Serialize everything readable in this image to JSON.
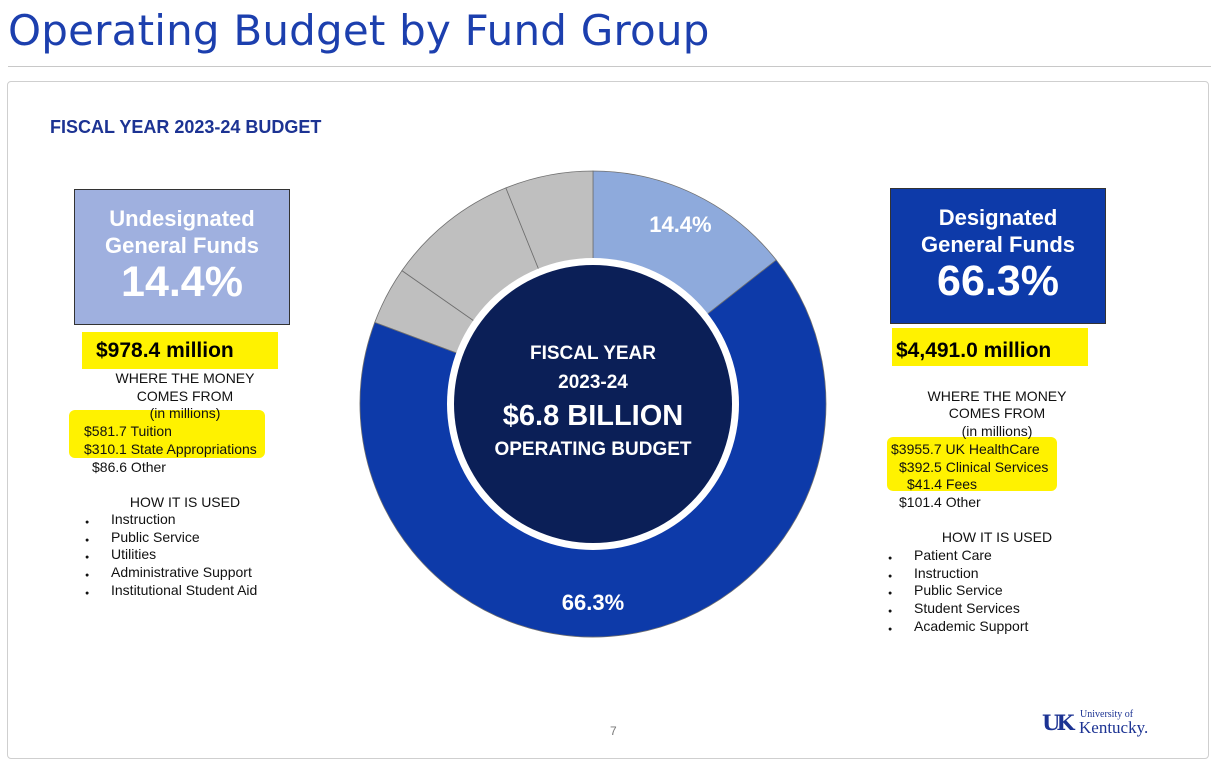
{
  "page_header": "Operating Budget by Fund Group",
  "slide": {
    "title": "FISCAL YEAR 2023-24  BUDGET",
    "page_number": "7",
    "logo": {
      "mark": "UK",
      "line1": "University of",
      "line2": "Kentucky."
    }
  },
  "left_panel": {
    "box_name_line1": "Undesignated",
    "box_name_line2": "General Funds",
    "box_percent": "14.4%",
    "amount": "$978.4 million",
    "sources_heading_1": "WHERE THE MONEY",
    "sources_heading_2": "COMES FROM",
    "sources_unit": "(in millions)",
    "sources": [
      "$581.7 Tuition",
      "$310.1 State Appropriations",
      "$86.6 Other"
    ],
    "uses_heading": "HOW IT IS USED",
    "uses": [
      "Instruction",
      "Public Service",
      "Utilities",
      "Administrative Support",
      "Institutional  Student Aid"
    ]
  },
  "right_panel": {
    "box_name_line1": "Designated",
    "box_name_line2": "General Funds",
    "box_percent": "66.3%",
    "amount": "$4,491.0 million",
    "sources_heading_1": "WHERE THE MONEY",
    "sources_heading_2": "COMES FROM",
    "sources_unit": "(in millions)",
    "sources": [
      "$3955.7 UK HealthCare",
      "$392.5 Clinical Services",
      "$41.4 Fees",
      "$101.4 Other"
    ],
    "uses_heading": "HOW IT IS USED",
    "uses": [
      "Patient Care",
      "Instruction",
      "Public Service",
      "Student Services",
      "Academic Support"
    ]
  },
  "colors": {
    "header_blue": "#1c3fae",
    "undesignated": "#8eaadc",
    "designated": "#0d3aa9",
    "other_segments": "#bfbfbf",
    "center_navy": "#0b1f57",
    "highlight": "#fff200"
  },
  "chart_data": {
    "type": "pie",
    "variant": "donut",
    "center_text": [
      "FISCAL YEAR",
      "2023-24",
      "$6.8 BILLION",
      "OPERATING BUDGET"
    ],
    "slices": [
      {
        "value": 14.4,
        "label": "14.4%",
        "color": "#8eaadc"
      },
      {
        "value": 66.3,
        "label": "66.3%",
        "color": "#0d3aa9"
      },
      {
        "value": 4.0,
        "label": "",
        "color": "#bfbfbf"
      },
      {
        "value": 9.2,
        "label": "",
        "color": "#bfbfbf"
      },
      {
        "value": 6.1,
        "label": "",
        "color": "#bfbfbf"
      }
    ],
    "start_angle_deg": 0,
    "direction": "clockwise"
  }
}
